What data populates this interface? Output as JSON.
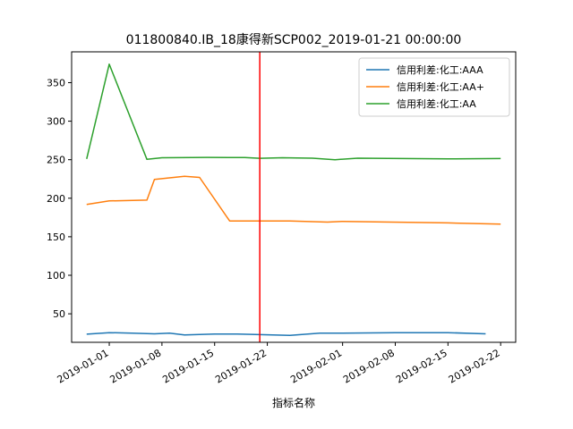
{
  "chart_data": {
    "type": "line",
    "title": "011800840.IB_18康得新SCP002_2019-01-21 00:00:00",
    "xlabel": "指标名称",
    "ylabel": "",
    "x_ticks": [
      "2019-01-01",
      "2019-01-08",
      "2019-01-15",
      "2019-01-22",
      "2019-02-01",
      "2019-02-08",
      "2019-02-15",
      "2019-02-22"
    ],
    "y_ticks": [
      50,
      100,
      150,
      200,
      250,
      300,
      350
    ],
    "xlim": [
      "2018-12-27",
      "2019-02-24"
    ],
    "ylim": [
      13,
      390
    ],
    "vline": {
      "x": "2019-01-21",
      "color": "#ff0000"
    },
    "legend_position": "top-right",
    "grid": false,
    "series": [
      {
        "name": "信用利差:化工:AAA",
        "color": "#1f77b4",
        "points": [
          {
            "x": "2018-12-29",
            "y": 23.5
          },
          {
            "x": "2019-01-01",
            "y": 25.5
          },
          {
            "x": "2019-01-04",
            "y": 24.9
          },
          {
            "x": "2019-01-07",
            "y": 24.0
          },
          {
            "x": "2019-01-09",
            "y": 24.8
          },
          {
            "x": "2019-01-11",
            "y": 22.5
          },
          {
            "x": "2019-01-15",
            "y": 23.8
          },
          {
            "x": "2019-01-18",
            "y": 23.8
          },
          {
            "x": "2019-01-21",
            "y": 23.0
          },
          {
            "x": "2019-01-25",
            "y": 22.0
          },
          {
            "x": "2019-01-29",
            "y": 25.0
          },
          {
            "x": "2019-02-01",
            "y": 25.0
          },
          {
            "x": "2019-02-08",
            "y": 25.5
          },
          {
            "x": "2019-02-15",
            "y": 25.5
          },
          {
            "x": "2019-02-20",
            "y": 24.0
          }
        ]
      },
      {
        "name": "信用利差:化工:AA+",
        "color": "#ff7f0e",
        "points": [
          {
            "x": "2018-12-29",
            "y": 192.0
          },
          {
            "x": "2019-01-01",
            "y": 196.5
          },
          {
            "x": "2019-01-06",
            "y": 197.5
          },
          {
            "x": "2019-01-07",
            "y": 224.5
          },
          {
            "x": "2019-01-11",
            "y": 228.5
          },
          {
            "x": "2019-01-13",
            "y": 227.0
          },
          {
            "x": "2019-01-17",
            "y": 170.5
          },
          {
            "x": "2019-01-21",
            "y": 170.5
          },
          {
            "x": "2019-01-25",
            "y": 170.5
          },
          {
            "x": "2019-01-30",
            "y": 169.0
          },
          {
            "x": "2019-02-01",
            "y": 170.0
          },
          {
            "x": "2019-02-15",
            "y": 168.0
          },
          {
            "x": "2019-02-22",
            "y": 166.5
          }
        ]
      },
      {
        "name": "信用利差:化工:AA",
        "color": "#2ca02c",
        "points": [
          {
            "x": "2018-12-29",
            "y": 251.0
          },
          {
            "x": "2019-01-01",
            "y": 374.0
          },
          {
            "x": "2019-01-06",
            "y": 250.5
          },
          {
            "x": "2019-01-08",
            "y": 252.5
          },
          {
            "x": "2019-01-14",
            "y": 253.0
          },
          {
            "x": "2019-01-19",
            "y": 252.8
          },
          {
            "x": "2019-01-21",
            "y": 251.8
          },
          {
            "x": "2019-01-24",
            "y": 252.5
          },
          {
            "x": "2019-01-28",
            "y": 252.0
          },
          {
            "x": "2019-01-31",
            "y": 250.0
          },
          {
            "x": "2019-02-03",
            "y": 252.0
          },
          {
            "x": "2019-02-15",
            "y": 251.0
          },
          {
            "x": "2019-02-22",
            "y": 251.5
          }
        ]
      }
    ]
  }
}
